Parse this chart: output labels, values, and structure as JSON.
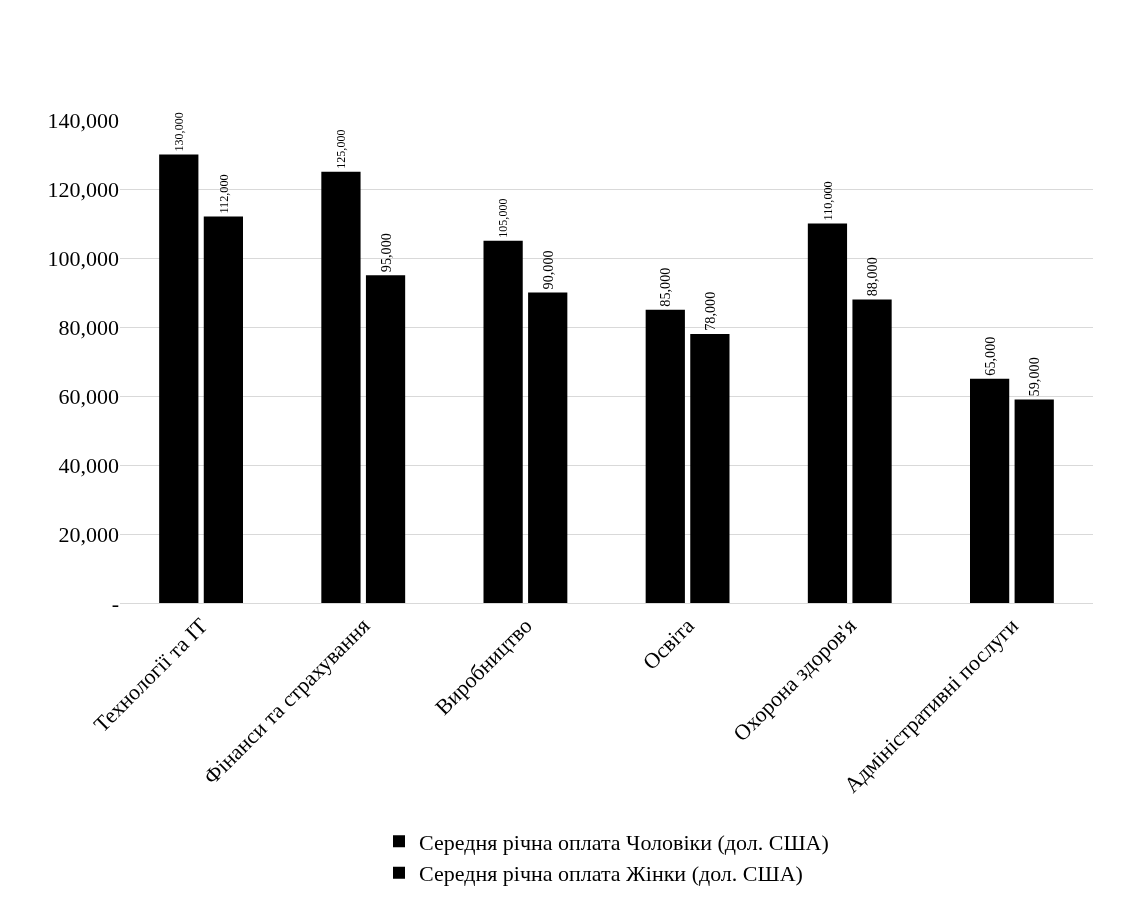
{
  "chart_data": {
    "type": "bar",
    "categories": [
      "Технології та ІТ",
      "Фінанси та страхування",
      "Виробництво",
      "Освіта",
      "Охорона здоров'я",
      "Адміністративні послуги"
    ],
    "series": [
      {
        "name": "Середня річна оплата Чоловіки (дол. США)",
        "color": "#000000",
        "values": [
          130000,
          125000,
          105000,
          85000,
          110000,
          65000
        ],
        "value_labels": [
          "130,000",
          "125,000",
          "105,000",
          "85,000",
          "110,000",
          "65,000"
        ]
      },
      {
        "name": "Середня річна оплата Жінки (дол. США)",
        "color": "#000000",
        "values": [
          112000,
          95000,
          90000,
          78000,
          88000,
          59000
        ],
        "value_labels": [
          "112,000",
          "95,000",
          "90,000",
          "78,000",
          "88,000",
          "59,000"
        ]
      }
    ],
    "ylim": [
      0,
      140000
    ],
    "yticks": [
      {
        "value": 0,
        "label": "-"
      },
      {
        "value": 20000,
        "label": "20,000"
      },
      {
        "value": 40000,
        "label": "40,000"
      },
      {
        "value": 60000,
        "label": "60,000"
      },
      {
        "value": 80000,
        "label": "80,000"
      },
      {
        "value": 100000,
        "label": "100,000"
      },
      {
        "value": 120000,
        "label": "120,000"
      },
      {
        "value": 140000,
        "label": "140,000"
      }
    ],
    "grid": "y",
    "legend": "bottom"
  }
}
